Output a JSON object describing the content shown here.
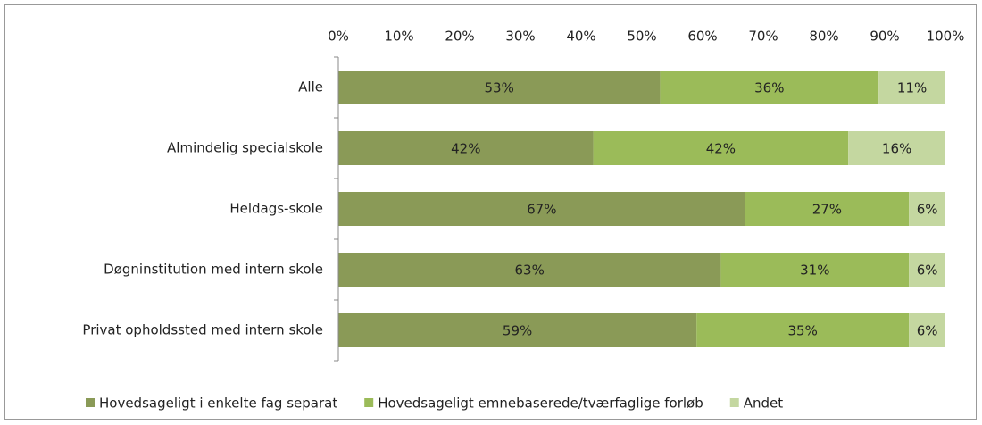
{
  "chart_data": {
    "type": "stacked-barh",
    "categories": [
      "Alle",
      "Almindelig specialskole",
      "Heldags-skole",
      "Døgninstitution med intern skole",
      "Privat opholdssted med intern skole"
    ],
    "series": [
      {
        "name": "Hovedsageligt i enkelte fag separat",
        "color": "#8a9a57",
        "values": [
          53,
          42,
          67,
          63,
          59
        ],
        "value_labels": [
          "53%",
          "42%",
          "67%",
          "63%",
          "59%"
        ]
      },
      {
        "name": "Hovedsageligt emnebaserede/tværfaglige forløb",
        "color": "#9bbb59",
        "values": [
          36,
          42,
          27,
          31,
          35
        ],
        "value_labels": [
          "36%",
          "42%",
          "27%",
          "31%",
          "35%"
        ]
      },
      {
        "name": "Andet",
        "color": "#c4d7a0",
        "values": [
          11,
          16,
          6,
          6,
          6
        ],
        "value_labels": [
          "11%",
          "16%",
          "6%",
          "6%",
          "6%"
        ]
      }
    ],
    "xlim": [
      0,
      100
    ],
    "xticks": [
      {
        "value": 0,
        "label": "0%"
      },
      {
        "value": 10,
        "label": "10%"
      },
      {
        "value": 20,
        "label": "20%"
      },
      {
        "value": 30,
        "label": "30%"
      },
      {
        "value": 40,
        "label": "40%"
      },
      {
        "value": 50,
        "label": "50%"
      },
      {
        "value": 60,
        "label": "60%"
      },
      {
        "value": 70,
        "label": "70%"
      },
      {
        "value": 80,
        "label": "80%"
      },
      {
        "value": 90,
        "label": "90%"
      },
      {
        "value": 100,
        "label": "100%"
      }
    ],
    "legend": "bottom"
  }
}
